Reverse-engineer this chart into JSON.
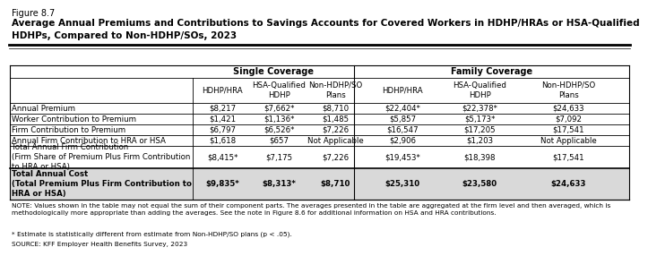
{
  "figure_label": "Figure 8.7",
  "title": "Average Annual Premiums and Contributions to Savings Accounts for Covered Workers in HDHP/HRAs or HSA-Qualified\nHDHPs, Compared to Non-HDHP/SOs, 2023",
  "col_headers": [
    "HDHP/HRA",
    "HSA-Qualified\nHDHP",
    "Non-HDHP/SO\nPlans",
    "HDHP/HRA",
    "HSA-Qualified\nHDHP",
    "Non-HDHP/SO\nPlans"
  ],
  "row_labels": [
    "Annual Premium",
    "Worker Contribution to Premium",
    "Firm Contribution to Premium",
    "Annual Firm Contribution to HRA or HSA",
    "Total Annual Firm Contribution\n(Firm Share of Premium Plus Firm Contribution\nto HRA or HSA)",
    "Total Annual Cost\n(Total Premium Plus Firm Contribution to\nHRA or HSA)"
  ],
  "data": [
    [
      "$8,217",
      "$7,662*",
      "$8,710",
      "$22,404*",
      "$22,378*",
      "$24,633"
    ],
    [
      "$1,421",
      "$1,136*",
      "$1,485",
      "$5,857",
      "$5,173*",
      "$7,092"
    ],
    [
      "$6,797",
      "$6,526*",
      "$7,226",
      "$16,547",
      "$17,205",
      "$17,541"
    ],
    [
      "$1,618",
      "$657",
      "Not Applicable",
      "$2,906",
      "$1,203",
      "Not Applicable"
    ],
    [
      "$8,415*",
      "$7,175",
      "$7,226",
      "$19,453*",
      "$18,398",
      "$17,541"
    ],
    [
      "$9,835*",
      "$8,313*",
      "$8,710",
      "$25,310",
      "$23,580",
      "$24,633"
    ]
  ],
  "note": "NOTE: Values shown in the table may not equal the sum of their component parts. The averages presented in the table are aggregated at the firm level and then averaged, which is\nmethodologically more appropriate than adding the averages. See the note in Figure 8.6 for additional information on HSA and HRA contributions.",
  "footnote": "* Estimate is statistically different from estimate from Non-HDHP/SO plans (p < .05).",
  "source": "SOURCE: KFF Employer Health Benefits Survey, 2023",
  "bg_color": "#ffffff",
  "last_row_bg": "#d9d9d9"
}
